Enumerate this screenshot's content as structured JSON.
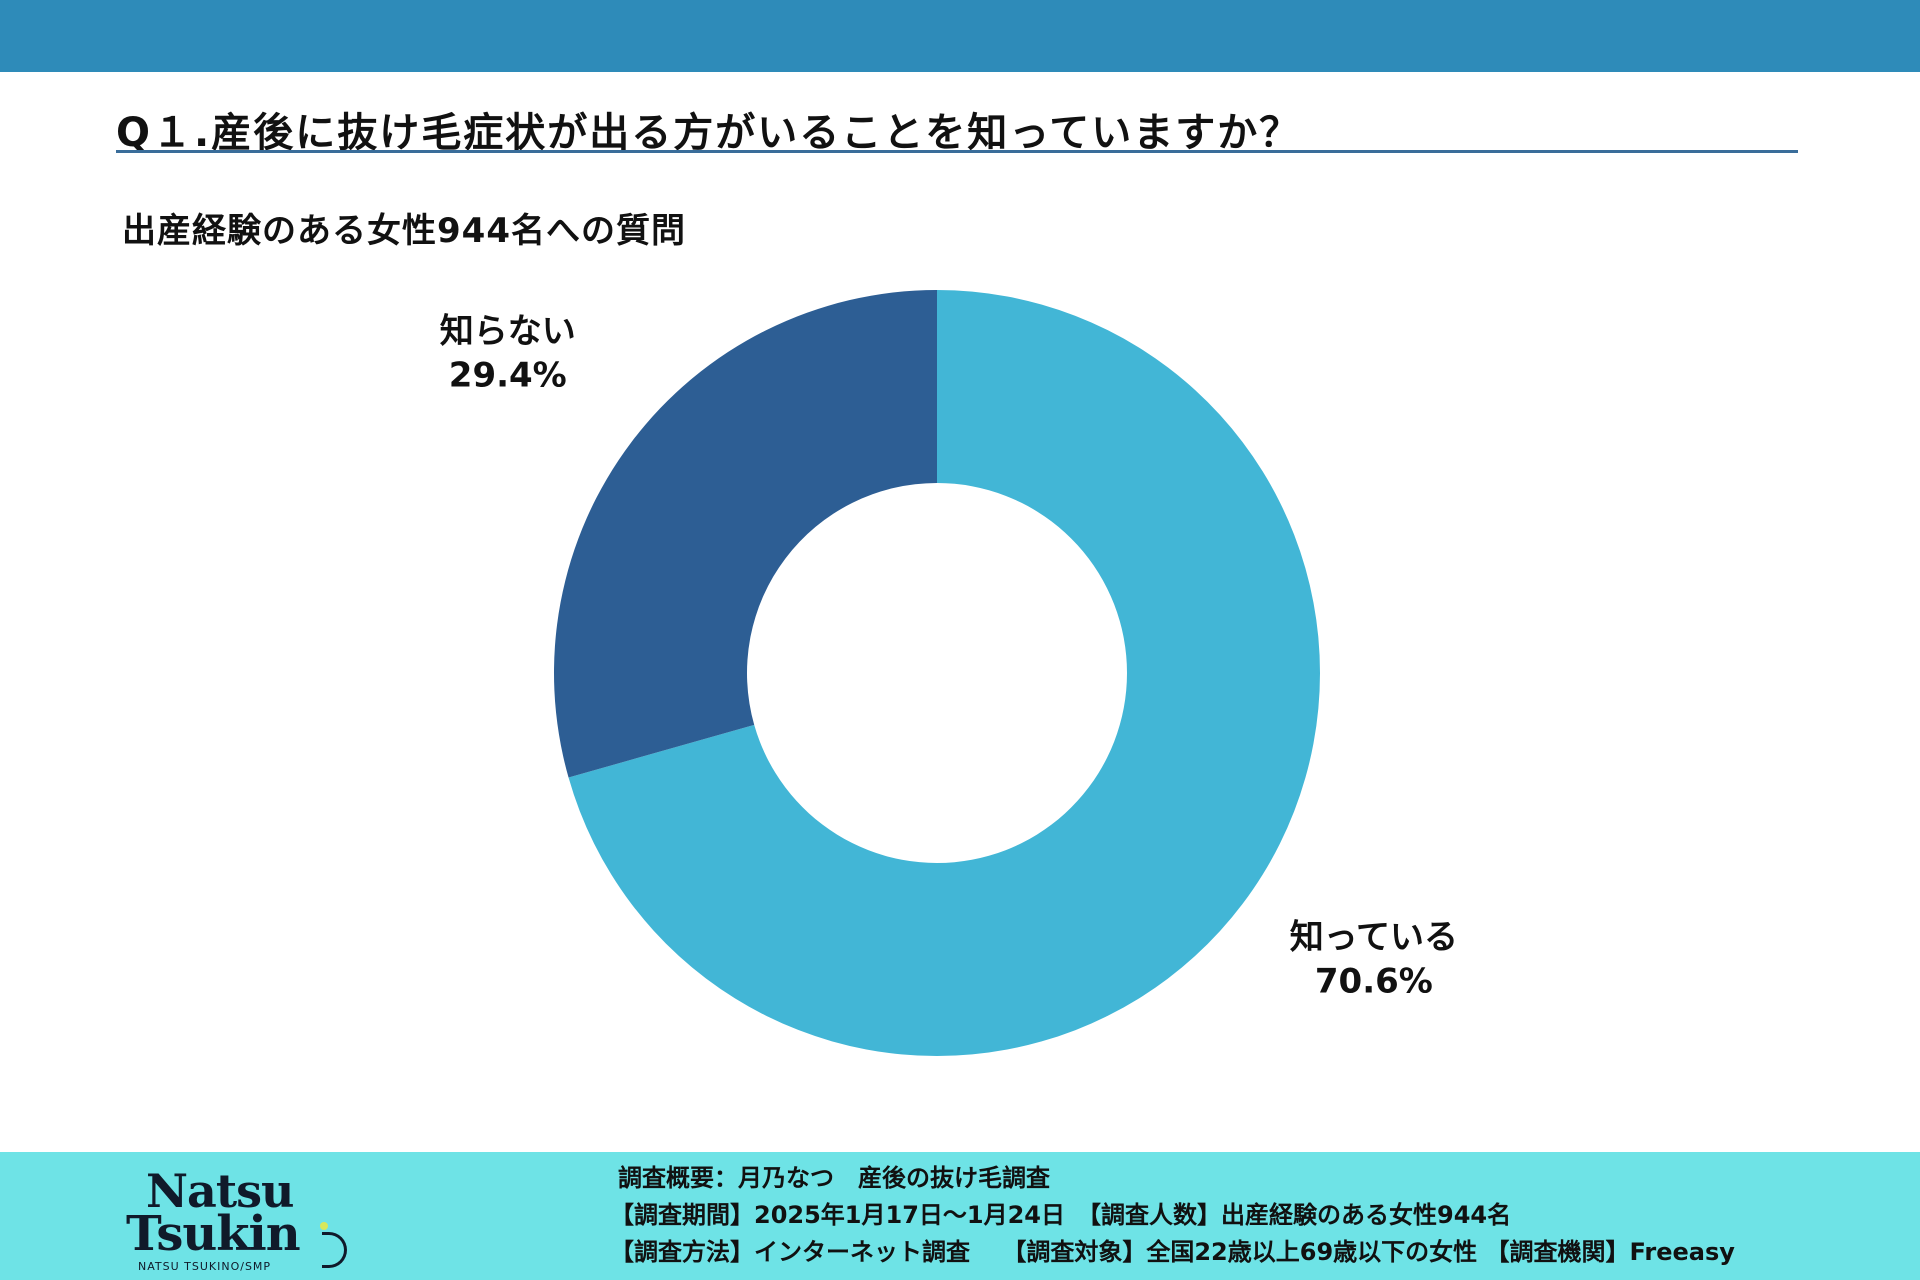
{
  "header": {
    "question": "Q１.産後に抜け毛症状が出る方がいることを知っていますか？",
    "subtitle": "出産経験のある女性944名への質問"
  },
  "colors": {
    "top_band": "#2e8bb9",
    "footer_bg": "#6ee3e6",
    "know": "#42b6d6",
    "dont_know": "#2d5e94"
  },
  "chart_data": {
    "type": "pie",
    "donut": true,
    "start": "12 o'clock, clockwise",
    "slices": [
      {
        "label": "知っている",
        "value": 70.6,
        "value_label": "70.6%",
        "color": "#42b6d6"
      },
      {
        "label": "知らない",
        "value": 29.4,
        "value_label": "29.4%",
        "color": "#2d5e94"
      }
    ]
  },
  "logo": {
    "line1": "Natsu",
    "line2": "Tsukin",
    "sub": "NATSU TSUKINO/SMP"
  },
  "footer": {
    "line1": "調査概要：月乃なつ　産後の抜け毛調査",
    "line2": "【調査期間】2025年1月17日〜1月24日　【調査人数】出産経験のある女性944名",
    "line3": "【調査方法】インターネット調査　 【調査対象】全国22歳以上69歳以下の女性 【調査機関】Freeasy"
  }
}
